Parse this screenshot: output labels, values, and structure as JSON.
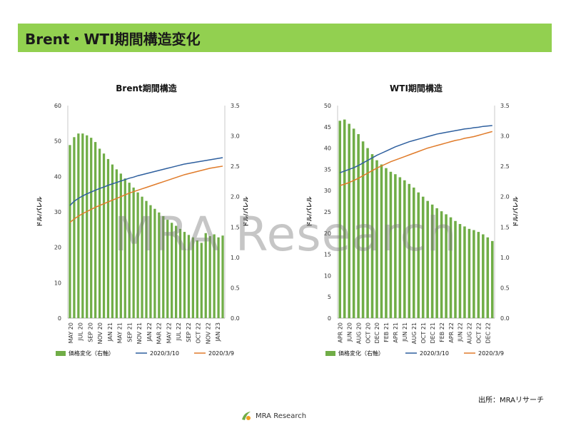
{
  "page": {
    "title": "Brent・WTI期間構造変化",
    "source": "出所：MRAリサーチ",
    "watermark": "MRA Research",
    "logo_text": "MRA Research"
  },
  "colors": {
    "header_bg": "#92d050",
    "bar": "#70ad47",
    "line1": "#2e5f9e",
    "line2": "#e07b2a"
  },
  "chart_data": [
    {
      "id": "brent",
      "type": "bar+line",
      "title": "Brent期間構造",
      "ylabel_left": "ドル/バレル",
      "ylabel_right": "ドル/バレル",
      "ylim_left": [
        0,
        60
      ],
      "yticks_left": [
        "0",
        "10",
        "20",
        "30",
        "40",
        "50",
        "60"
      ],
      "ylim_right": [
        0,
        3.5
      ],
      "yticks_right": [
        "0.0",
        "0.5",
        "1.0",
        "1.5",
        "2.0",
        "2.5",
        "3.0",
        "3.5"
      ],
      "x_labels": [
        "MAY 20",
        "JUL 20",
        "SEP 20",
        "NOV 20",
        "JAN 21",
        "MAY 21",
        "SEP 21",
        "NOV 21",
        "JAN 22",
        "MAR 22",
        "MAY 22",
        "JUL 22",
        "SEP 22",
        "OCT 22",
        "NOV 22",
        "JAN 23"
      ],
      "bars": {
        "name": "価格変化（右軸）",
        "values": [
          2.85,
          2.98,
          3.04,
          3.04,
          3.01,
          2.97,
          2.9,
          2.79,
          2.71,
          2.62,
          2.53,
          2.45,
          2.38,
          2.3,
          2.23,
          2.15,
          2.07,
          2.0,
          1.93,
          1.86,
          1.8,
          1.74,
          1.68,
          1.62,
          1.57,
          1.52,
          1.47,
          1.42,
          1.37,
          1.33,
          1.28,
          1.24,
          1.4,
          1.35,
          1.38,
          1.33,
          1.36
        ]
      },
      "lines": [
        {
          "name": "2020/3/10",
          "values": [
            31.8,
            33.0,
            33.8,
            34.5,
            35.1,
            35.6,
            36.1,
            36.6,
            37.0,
            37.5,
            37.9,
            38.3,
            38.7,
            39.1,
            39.5,
            39.8,
            40.2,
            40.5,
            40.8,
            41.1,
            41.4,
            41.7,
            42.0,
            42.3,
            42.6,
            42.9,
            43.2,
            43.5,
            43.7,
            43.9,
            44.1,
            44.3,
            44.5,
            44.7,
            44.9,
            45.1,
            45.3
          ]
        },
        {
          "name": "2020/3/9",
          "values": [
            27.0,
            28.0,
            28.8,
            29.5,
            30.1,
            30.7,
            31.3,
            31.8,
            32.3,
            32.8,
            33.3,
            33.8,
            34.3,
            34.8,
            35.3,
            35.7,
            36.1,
            36.5,
            36.9,
            37.3,
            37.7,
            38.1,
            38.5,
            38.9,
            39.3,
            39.7,
            40.1,
            40.5,
            40.8,
            41.1,
            41.4,
            41.7,
            42.0,
            42.3,
            42.5,
            42.7,
            42.9
          ]
        }
      ]
    },
    {
      "id": "wti",
      "type": "bar+line",
      "title": "WTI期間構造",
      "ylabel_left": "ドル/バレル",
      "ylabel_right": "ドル/バレル",
      "ylim_left": [
        0,
        50
      ],
      "yticks_left": [
        "0",
        "5",
        "10",
        "15",
        "20",
        "25",
        "30",
        "35",
        "40",
        "45",
        "50"
      ],
      "ylim_right": [
        0,
        3.5
      ],
      "yticks_right": [
        "0.0",
        "0.5",
        "1.0",
        "1.5",
        "2.0",
        "2.5",
        "3.0",
        "3.5"
      ],
      "x_labels": [
        "APR 20",
        "JUN 20",
        "AUG 20",
        "OCT 20",
        "DEC 20",
        "FEB 21",
        "APR 21",
        "JUN 21",
        "AUG 21",
        "OCT 21",
        "DEC 21",
        "FEB 22",
        "APR 22",
        "JUN 22",
        "AUG 22",
        "OCT 22",
        "DEC 22"
      ],
      "bars": {
        "name": "価格変化（右軸）",
        "values": [
          3.25,
          3.27,
          3.2,
          3.12,
          3.03,
          2.91,
          2.8,
          2.7,
          2.6,
          2.53,
          2.47,
          2.41,
          2.37,
          2.32,
          2.27,
          2.21,
          2.15,
          2.07,
          2.0,
          1.93,
          1.87,
          1.81,
          1.76,
          1.71,
          1.66,
          1.6,
          1.55,
          1.51,
          1.47,
          1.45,
          1.42,
          1.38,
          1.33,
          1.27
        ]
      },
      "lines": [
        {
          "name": "2020/3/10",
          "values": [
            34.2,
            34.6,
            35.0,
            35.4,
            35.9,
            36.5,
            37.1,
            37.7,
            38.3,
            38.8,
            39.3,
            39.8,
            40.3,
            40.7,
            41.1,
            41.5,
            41.8,
            42.1,
            42.4,
            42.7,
            43.0,
            43.3,
            43.5,
            43.7,
            43.9,
            44.1,
            44.3,
            44.5,
            44.6,
            44.8,
            44.9,
            45.1,
            45.2,
            45.3
          ]
        },
        {
          "name": "2020/3/9",
          "values": [
            31.2,
            31.5,
            31.9,
            32.4,
            32.9,
            33.5,
            34.1,
            34.7,
            35.3,
            35.8,
            36.3,
            36.8,
            37.2,
            37.6,
            38.0,
            38.4,
            38.8,
            39.2,
            39.6,
            40.0,
            40.3,
            40.6,
            40.9,
            41.2,
            41.5,
            41.8,
            42.0,
            42.3,
            42.5,
            42.7,
            43.0,
            43.3,
            43.6,
            43.9
          ]
        }
      ]
    }
  ]
}
